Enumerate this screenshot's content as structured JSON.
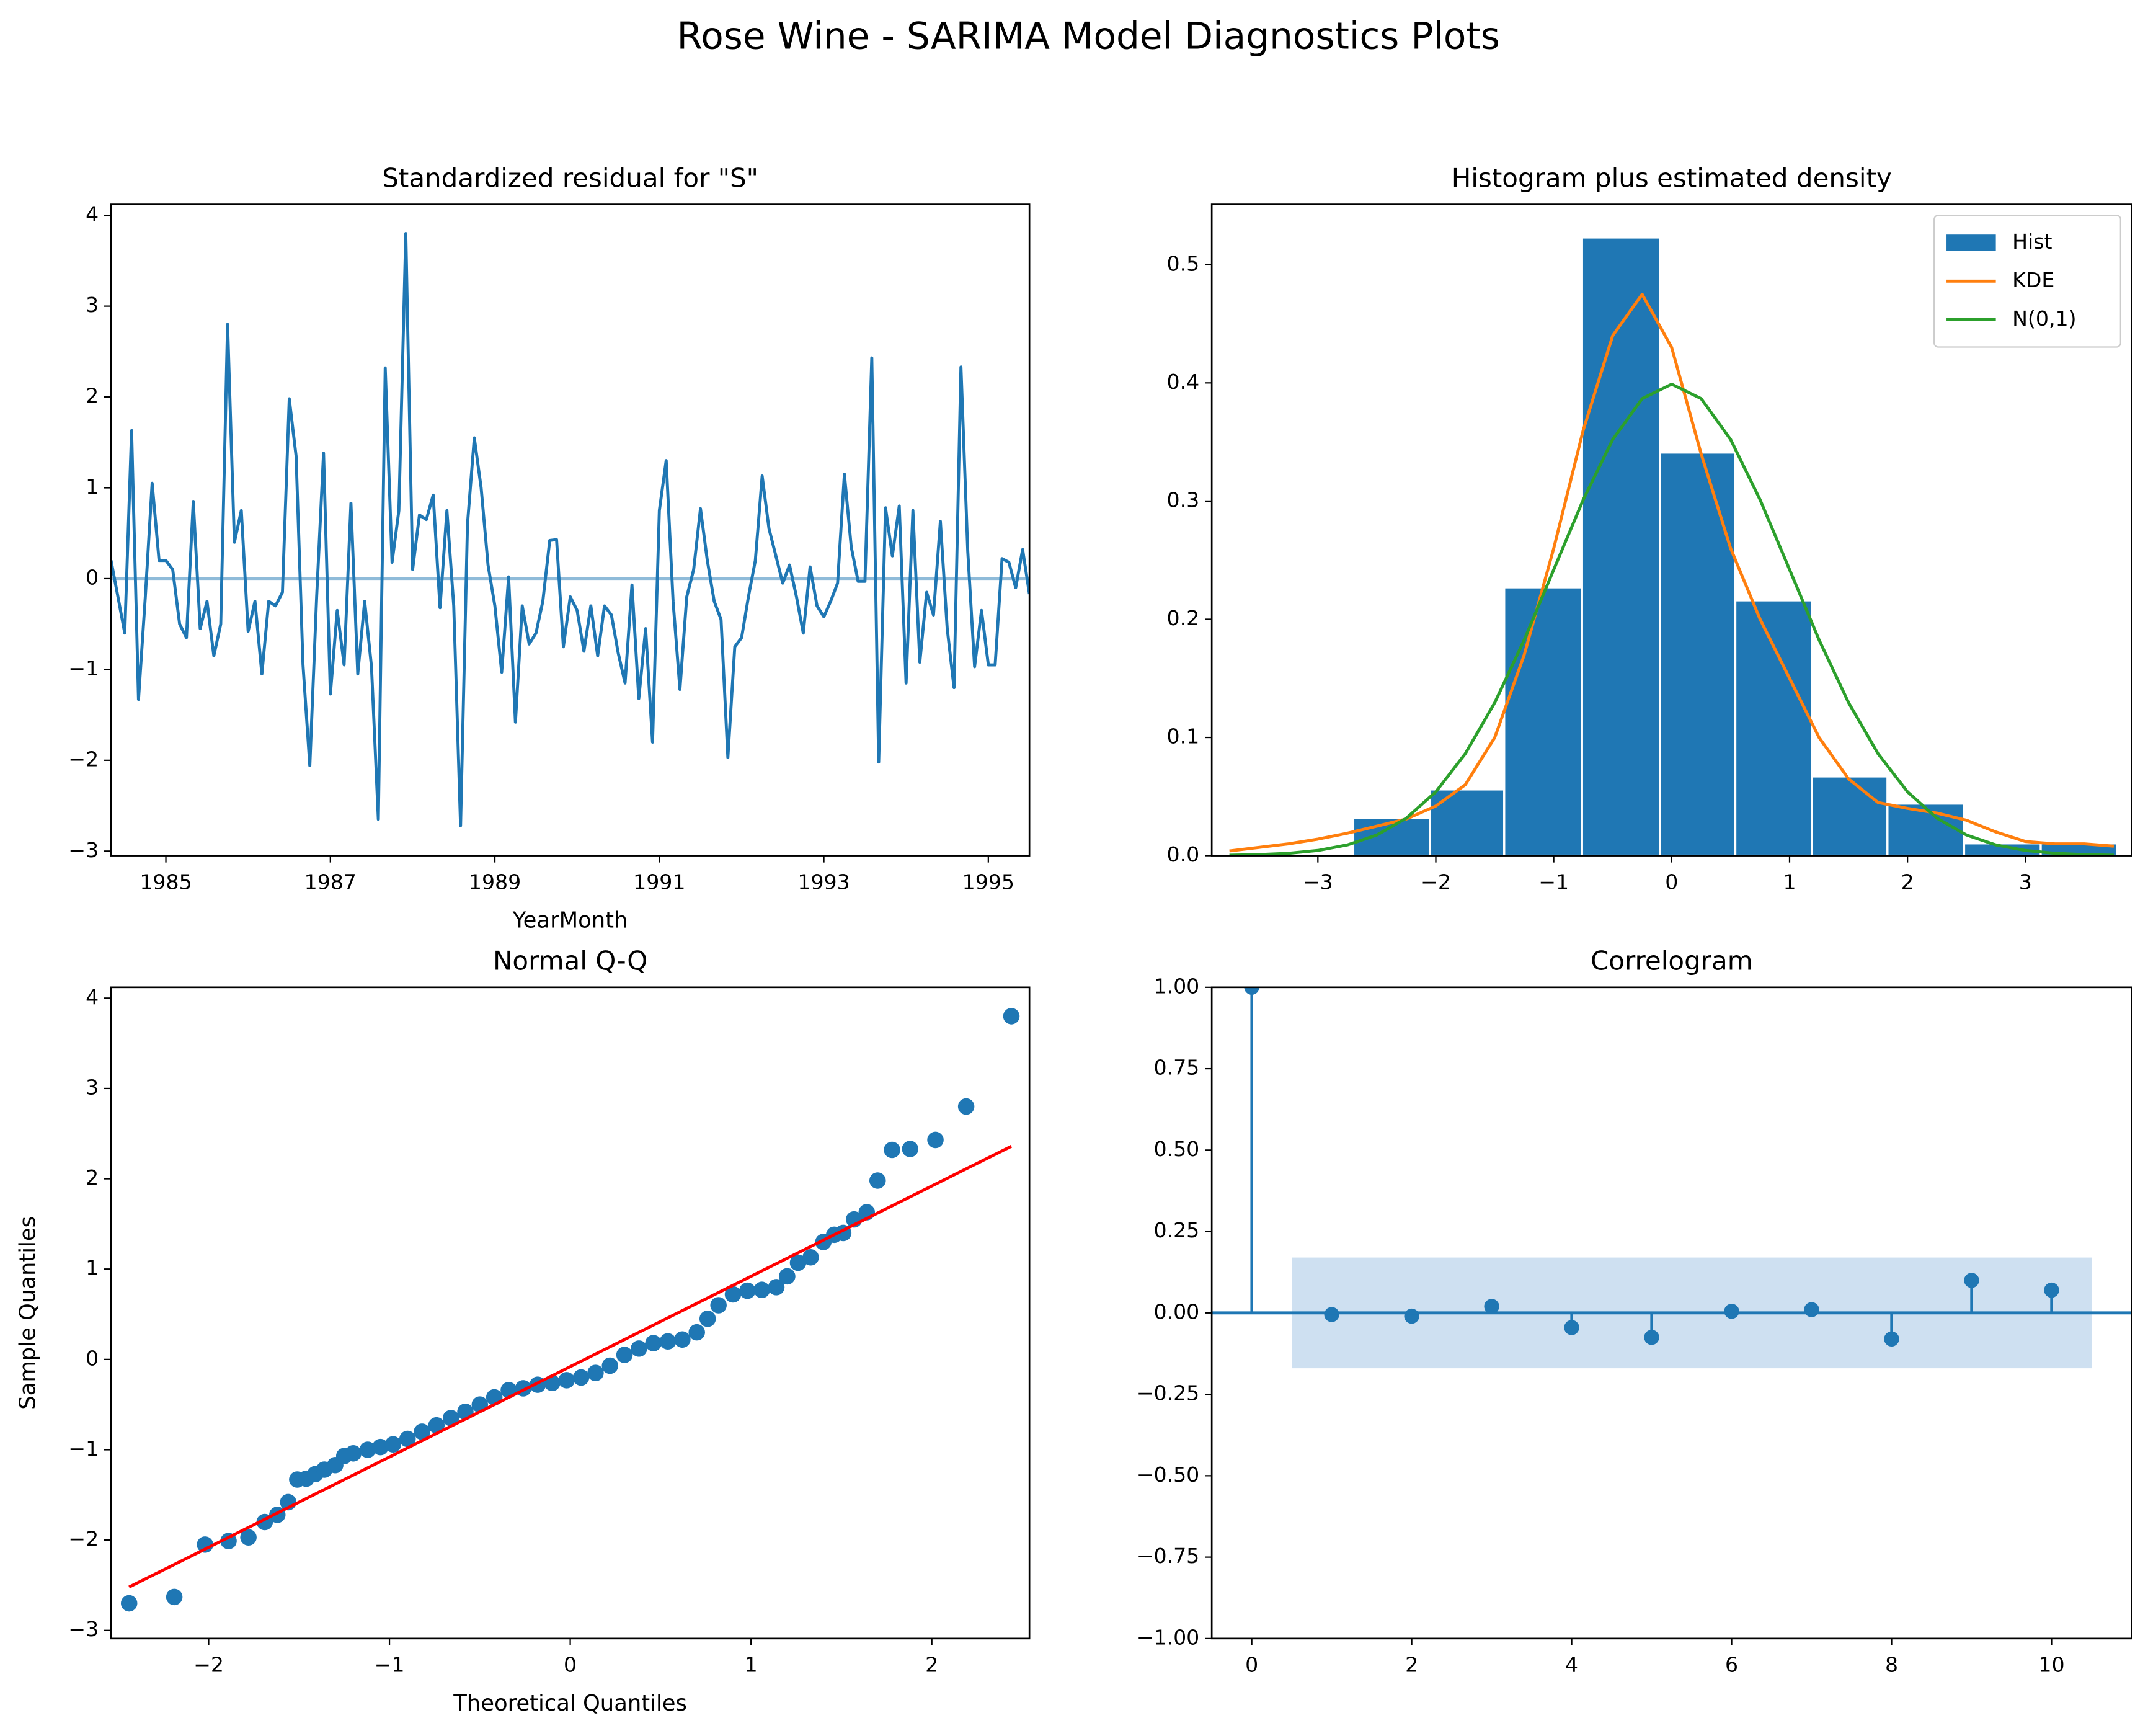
{
  "title": "Rose Wine - SARIMA Model Diagnostics Plots",
  "chart_data": [
    {
      "type": "line",
      "title": "Standardized residual for \"S\"",
      "xlabel": "YearMonth",
      "x": [
        1984.333,
        1984.417,
        1984.5,
        1984.583,
        1984.667,
        1984.75,
        1984.833,
        1984.917,
        1985,
        1985.083,
        1985.167,
        1985.25,
        1985.333,
        1985.417,
        1985.5,
        1985.583,
        1985.667,
        1985.75,
        1985.833,
        1985.917,
        1986,
        1986.083,
        1986.167,
        1986.25,
        1986.333,
        1986.417,
        1986.5,
        1986.583,
        1986.667,
        1986.75,
        1986.833,
        1986.917,
        1987,
        1987.083,
        1987.167,
        1987.25,
        1987.333,
        1987.417,
        1987.5,
        1987.583,
        1987.667,
        1987.75,
        1987.833,
        1987.917,
        1988,
        1988.083,
        1988.167,
        1988.25,
        1988.333,
        1988.417,
        1988.5,
        1988.583,
        1988.667,
        1988.75,
        1988.833,
        1988.917,
        1989,
        1989.083,
        1989.167,
        1989.25,
        1989.333,
        1989.417,
        1989.5,
        1989.583,
        1989.667,
        1989.75,
        1989.833,
        1989.917,
        1990,
        1990.083,
        1990.167,
        1990.25,
        1990.333,
        1990.417,
        1990.5,
        1990.583,
        1990.667,
        1990.75,
        1990.833,
        1990.917,
        1991,
        1991.083,
        1991.167,
        1991.25,
        1991.333,
        1991.417,
        1991.5,
        1991.583,
        1991.667,
        1991.75,
        1991.833,
        1991.917,
        1992,
        1992.083,
        1992.167,
        1992.25,
        1992.333,
        1992.417,
        1992.5,
        1992.583,
        1992.667,
        1992.75,
        1992.833,
        1992.917,
        1993,
        1993.083,
        1993.167,
        1993.25,
        1993.333,
        1993.417,
        1993.5,
        1993.583,
        1993.667,
        1993.75,
        1993.833,
        1993.917,
        1994,
        1994.083,
        1994.167,
        1994.25,
        1994.333,
        1994.417,
        1994.5,
        1994.583,
        1994.667,
        1994.75,
        1994.833,
        1994.917,
        1995,
        1995.083,
        1995.167,
        1995.25,
        1995.333,
        1995.417,
        1995.5
      ],
      "series": [
        {
          "color": "#1f77b4",
          "values": [
            0.2,
            -0.2,
            -0.6,
            1.63,
            -1.33,
            -0.2,
            1.05,
            0.2,
            0.2,
            0.1,
            -0.5,
            -0.65,
            0.85,
            -0.55,
            -0.25,
            -0.85,
            -0.5,
            2.8,
            0.4,
            0.75,
            -0.58,
            -0.25,
            -1.05,
            -0.25,
            -0.3,
            -0.15,
            1.98,
            1.35,
            -0.95,
            -2.06,
            -0.2,
            1.38,
            -1.27,
            -0.35,
            -0.95,
            0.83,
            -1.05,
            -0.25,
            -0.97,
            -2.65,
            2.32,
            0.18,
            0.75,
            3.8,
            0.1,
            0.7,
            0.65,
            0.92,
            -0.32,
            0.75,
            -0.3,
            -2.72,
            0.6,
            1.55,
            1.0,
            0.15,
            -0.3,
            -1.03,
            0.02,
            -1.58,
            -0.3,
            -0.72,
            -0.6,
            -0.25,
            0.42,
            0.43,
            -0.75,
            -0.2,
            -0.35,
            -0.8,
            -0.3,
            -0.85,
            -0.3,
            -0.4,
            -0.82,
            -1.15,
            -0.07,
            -1.32,
            -0.55,
            -1.8,
            0.75,
            1.3,
            -0.25,
            -1.22,
            -0.2,
            0.1,
            0.77,
            0.2,
            -0.25,
            -0.45,
            -1.97,
            -0.75,
            -0.65,
            -0.2,
            0.2,
            1.13,
            0.55,
            0.25,
            -0.05,
            0.15,
            -0.2,
            -0.6,
            0.13,
            -0.3,
            -0.42,
            -0.25,
            -0.05,
            1.15,
            0.35,
            -0.03,
            -0.03,
            2.43,
            -2.02,
            0.78,
            0.25,
            0.8,
            -1.15,
            0.75,
            -0.92,
            -0.15,
            -0.4,
            0.63,
            -0.55,
            -1.2,
            2.33,
            0.3,
            -0.97,
            -0.35,
            -0.95,
            -0.95,
            0.22,
            0.18,
            -0.1,
            0.32,
            -0.17
          ]
        }
      ],
      "hline": {
        "value": 0,
        "color": "#8fbbd9"
      },
      "xlim": [
        1984.333,
        1995.5
      ],
      "ylim": [
        -3.05,
        4.12
      ],
      "xticks": [
        1985,
        1987,
        1989,
        1991,
        1993,
        1995
      ],
      "yticks": [
        {
          "value": -3,
          "label": "−3"
        },
        {
          "value": -2,
          "label": "−2"
        },
        {
          "value": -1,
          "label": "−1"
        },
        0,
        1,
        2,
        3,
        4
      ]
    },
    {
      "type": "histogram",
      "title": "Histogram plus estimated density",
      "bins": [
        -2.7,
        -2.05,
        -1.42,
        -0.76,
        -0.1,
        0.54,
        1.19,
        1.83,
        2.48,
        3.13,
        3.78
      ],
      "counts": [
        0.032,
        0.056,
        0.227,
        0.523,
        0.341,
        0.216,
        0.067,
        0.044,
        0.0104,
        0.0104
      ],
      "name": "Hist",
      "color": "#1f77b4",
      "series": [
        {
          "name": "KDE",
          "color": "#ff7f0e",
          "x": [
            -3.75,
            -3.5,
            -3.25,
            -3,
            -2.75,
            -2.5,
            -2.25,
            -2,
            -1.75,
            -1.5,
            -1.25,
            -1,
            -0.75,
            -0.5,
            -0.25,
            0,
            0.25,
            0.5,
            0.75,
            1,
            1.25,
            1.5,
            1.75,
            2,
            2.25,
            2.5,
            2.75,
            3,
            3.25,
            3.5,
            3.75
          ],
          "values": [
            0.004,
            0.007,
            0.01,
            0.014,
            0.019,
            0.025,
            0.031,
            0.042,
            0.06,
            0.1,
            0.17,
            0.26,
            0.36,
            0.44,
            0.475,
            0.43,
            0.34,
            0.26,
            0.2,
            0.15,
            0.1,
            0.065,
            0.045,
            0.04,
            0.036,
            0.03,
            0.02,
            0.012,
            0.01,
            0.01,
            0.008
          ]
        },
        {
          "name": "N(0,1)",
          "color": "#2ca02c",
          "x": [
            -3.75,
            -3.5,
            -3.25,
            -3,
            -2.75,
            -2.5,
            -2.25,
            -2,
            -1.75,
            -1.5,
            -1.25,
            -1,
            -0.75,
            -0.5,
            -0.25,
            0,
            0.25,
            0.5,
            0.75,
            1,
            1.25,
            1.5,
            1.75,
            2,
            2.25,
            2.5,
            2.75,
            3,
            3.25,
            3.5,
            3.75
          ],
          "values": [
            0.0004,
            0.0009,
            0.002,
            0.0044,
            0.0091,
            0.0175,
            0.0317,
            0.054,
            0.0863,
            0.1295,
            0.1826,
            0.242,
            0.3011,
            0.3521,
            0.3867,
            0.3989,
            0.3867,
            0.3521,
            0.3011,
            0.242,
            0.1826,
            0.1295,
            0.0863,
            0.054,
            0.0317,
            0.0175,
            0.0091,
            0.0044,
            0.002,
            0.0009,
            0.0004
          ]
        }
      ],
      "legend": "upper right",
      "xlim": [
        -3.9,
        3.9
      ],
      "ylim": [
        0,
        0.551
      ],
      "xticks": [
        {
          "value": -3,
          "label": "−3"
        },
        {
          "value": -2,
          "label": "−2"
        },
        {
          "value": -1,
          "label": "−1"
        },
        0,
        1,
        2,
        3
      ],
      "yticks": [
        {
          "value": 0,
          "label": "0.0"
        },
        0.1,
        0.2,
        0.3,
        0.4,
        0.5
      ]
    },
    {
      "type": "scatter",
      "title": "Normal Q-Q",
      "xlabel": "Theoretical Quantiles",
      "ylabel": "Sample Quantiles",
      "x": [
        -2.44,
        -2.19,
        -2.02,
        -1.89,
        -1.78,
        -1.69,
        -1.62,
        -1.56,
        -1.51,
        -1.46,
        -1.41,
        -1.36,
        -1.3,
        -1.25,
        -1.2,
        -1.12,
        -1.05,
        -0.98,
        -0.9,
        -0.82,
        -0.74,
        -0.66,
        -0.58,
        -0.5,
        -0.42,
        -0.34,
        -0.26,
        -0.18,
        -0.1,
        -0.02,
        0.06,
        0.14,
        0.22,
        0.3,
        0.38,
        0.46,
        0.54,
        0.62,
        0.7,
        0.76,
        0.82,
        0.9,
        0.98,
        1.06,
        1.14,
        1.2,
        1.26,
        1.33,
        1.4,
        1.46,
        1.51,
        1.57,
        1.64,
        1.7,
        1.78,
        1.88,
        2.02,
        2.19,
        2.44
      ],
      "values": [
        -2.7,
        -2.63,
        -2.05,
        -2.01,
        -1.97,
        -1.8,
        -1.72,
        -1.58,
        -1.33,
        -1.32,
        -1.27,
        -1.22,
        -1.17,
        -1.07,
        -1.04,
        -1.0,
        -0.97,
        -0.94,
        -0.88,
        -0.8,
        -0.73,
        -0.65,
        -0.58,
        -0.5,
        -0.42,
        -0.34,
        -0.32,
        -0.28,
        -0.26,
        -0.23,
        -0.2,
        -0.15,
        -0.07,
        0.05,
        0.12,
        0.18,
        0.2,
        0.22,
        0.3,
        0.45,
        0.6,
        0.72,
        0.76,
        0.77,
        0.8,
        0.92,
        1.07,
        1.13,
        1.3,
        1.38,
        1.4,
        1.55,
        1.63,
        1.98,
        2.32,
        2.33,
        2.43,
        2.8,
        3.8
      ],
      "color": "#1f77b4",
      "fit": {
        "x": [
          -2.44,
          2.44
        ],
        "values": [
          -2.52,
          2.36
        ],
        "color": "#ff0000"
      },
      "xlim": [
        -2.54,
        2.54
      ],
      "ylim": [
        -3.09,
        4.12
      ],
      "xticks": [
        {
          "value": -2,
          "label": "−2"
        },
        {
          "value": -1,
          "label": "−1"
        },
        0,
        1,
        2
      ],
      "yticks": [
        {
          "value": -3,
          "label": "−3"
        },
        {
          "value": -2,
          "label": "−2"
        },
        {
          "value": -1,
          "label": "−1"
        },
        0,
        1,
        2,
        3,
        4
      ]
    },
    {
      "type": "stem",
      "title": "Correlogram",
      "x": [
        0,
        1,
        2,
        3,
        4,
        5,
        6,
        7,
        8,
        9,
        10
      ],
      "values": [
        1.0,
        -0.005,
        -0.01,
        0.02,
        -0.045,
        -0.075,
        0.005,
        0.01,
        -0.08,
        0.1,
        0.07
      ],
      "color": "#1f77b4",
      "band": {
        "x": [
          0.5,
          10.5
        ],
        "values": [
          -0.17,
          0.17
        ],
        "color": "#c6dbef"
      },
      "hline": {
        "value": 0,
        "color": "#1f77b4"
      },
      "xlim": [
        -0.5,
        11
      ],
      "ylim": [
        -1,
        1
      ],
      "xticks": [
        0,
        2,
        4,
        6,
        8,
        10
      ],
      "yticks": [
        {
          "value": -1,
          "label": "−1.00"
        },
        {
          "value": -0.75,
          "label": "−0.75"
        },
        {
          "value": -0.5,
          "label": "−0.50"
        },
        {
          "value": -0.25,
          "label": "−0.25"
        },
        {
          "value": 0,
          "label": "0.00"
        },
        {
          "value": 0.25,
          "label": "0.25"
        },
        {
          "value": 0.5,
          "label": "0.50"
        },
        {
          "value": 0.75,
          "label": "0.75"
        },
        {
          "value": 1,
          "label": "1.00"
        }
      ]
    }
  ]
}
